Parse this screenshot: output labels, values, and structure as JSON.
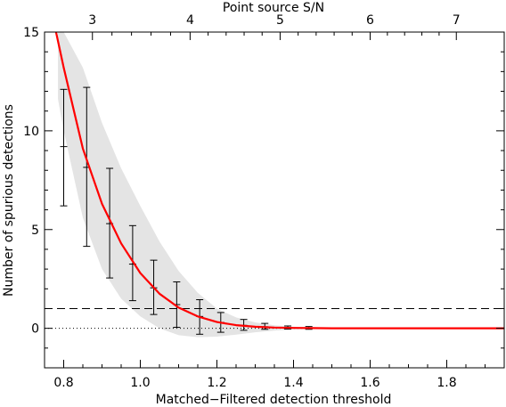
{
  "chart_data": {
    "type": "line",
    "xlabel": "Matched−Filtered detection threshold",
    "ylabel": "Number of spurious detections",
    "top_xlabel": "Point source S/N",
    "xlim": [
      0.75,
      1.95
    ],
    "ylim": [
      -2.0,
      15.0
    ],
    "x_ticks": [
      0.8,
      1.0,
      1.2,
      1.4,
      1.6,
      1.8
    ],
    "x_tick_labels": [
      "0.8",
      "1.0",
      "1.2",
      "1.4",
      "1.6",
      "1.8"
    ],
    "y_ticks": [
      0,
      5,
      10,
      15
    ],
    "y_tick_labels": [
      "0",
      "5",
      "10",
      "15"
    ],
    "top_ticks": [
      {
        "label": "3",
        "x": 0.875
      },
      {
        "label": "4",
        "x": 1.13
      },
      {
        "label": "5",
        "x": 1.365
      },
      {
        "label": "6",
        "x": 1.6
      },
      {
        "label": "7",
        "x": 1.825
      }
    ],
    "series": [
      {
        "kind": "errorbar",
        "color": "#000000",
        "points": [
          {
            "x": 0.8,
            "y": 9.2,
            "lo": 6.2,
            "hi": 12.1
          },
          {
            "x": 0.86,
            "y": 8.15,
            "lo": 4.15,
            "hi": 12.2
          },
          {
            "x": 0.92,
            "y": 5.3,
            "lo": 2.55,
            "hi": 8.1
          },
          {
            "x": 0.98,
            "y": 3.25,
            "lo": 1.4,
            "hi": 5.2
          },
          {
            "x": 1.035,
            "y": 2.05,
            "lo": 0.7,
            "hi": 3.45
          },
          {
            "x": 1.095,
            "y": 1.2,
            "lo": 0.05,
            "hi": 2.35
          },
          {
            "x": 1.155,
            "y": 0.6,
            "lo": -0.3,
            "hi": 1.45
          },
          {
            "x": 1.21,
            "y": 0.3,
            "lo": -0.2,
            "hi": 0.8
          },
          {
            "x": 1.27,
            "y": 0.15,
            "lo": -0.1,
            "hi": 0.45
          },
          {
            "x": 1.325,
            "y": 0.08,
            "lo": -0.05,
            "hi": 0.25
          },
          {
            "x": 1.385,
            "y": 0.03,
            "lo": -0.04,
            "hi": 0.12
          },
          {
            "x": 1.44,
            "y": 0.02,
            "lo": -0.05,
            "hi": 0.09
          },
          {
            "x": 1.5,
            "y": 0.0,
            "lo": 0.0,
            "hi": 0.0
          },
          {
            "x": 1.56,
            "y": 0.0,
            "lo": 0.0,
            "hi": 0.0
          },
          {
            "x": 1.615,
            "y": 0.0,
            "lo": 0.0,
            "hi": 0.0
          },
          {
            "x": 1.675,
            "y": 0.0,
            "lo": 0.0,
            "hi": 0.0
          },
          {
            "x": 1.73,
            "y": 0.0,
            "lo": 0.0,
            "hi": 0.0
          },
          {
            "x": 1.79,
            "y": 0.0,
            "lo": 0.0,
            "hi": 0.0
          },
          {
            "x": 1.845,
            "y": 0.0,
            "lo": 0.0,
            "hi": 0.0
          },
          {
            "x": 1.905,
            "y": 0.0,
            "lo": 0.0,
            "hi": 0.0
          }
        ]
      },
      {
        "kind": "line",
        "color": "#ff0000",
        "x": [
          0.78,
          0.8,
          0.85,
          0.9,
          0.95,
          1.0,
          1.05,
          1.1,
          1.15,
          1.2,
          1.25,
          1.3,
          1.35,
          1.4,
          1.45,
          1.5,
          1.6,
          1.7,
          1.8,
          1.9,
          1.95
        ],
        "y": [
          15.3,
          13.2,
          9.1,
          6.3,
          4.3,
          2.8,
          1.75,
          1.05,
          0.6,
          0.32,
          0.16,
          0.08,
          0.04,
          0.02,
          0.01,
          0.0,
          0.0,
          0.0,
          0.0,
          0.0,
          0.0
        ]
      },
      {
        "kind": "band",
        "color": "#e4e4e4",
        "x": [
          0.785,
          0.8,
          0.85,
          0.9,
          0.95,
          1.0,
          1.05,
          1.1,
          1.15,
          1.2,
          1.25,
          1.3,
          1.35,
          1.4,
          1.45,
          1.5,
          1.6,
          1.7,
          1.8,
          1.9,
          1.95
        ],
        "lo": [
          11.6,
          10.0,
          5.6,
          3.0,
          1.5,
          0.6,
          0.0,
          -0.35,
          -0.45,
          -0.42,
          -0.32,
          -0.2,
          -0.12,
          -0.06,
          -0.02,
          0.0,
          0.0,
          0.0,
          0.0,
          0.0,
          0.0
        ],
        "hi": [
          15.0,
          15.0,
          13.2,
          10.4,
          8.1,
          6.2,
          4.4,
          2.9,
          1.8,
          1.0,
          0.55,
          0.3,
          0.15,
          0.08,
          0.03,
          0.0,
          0.0,
          0.0,
          0.0,
          0.0,
          0.0
        ]
      }
    ],
    "reference_lines": [
      {
        "y": 1.0,
        "style": "dashed"
      },
      {
        "y": 0.0,
        "style": "dotted"
      }
    ]
  }
}
